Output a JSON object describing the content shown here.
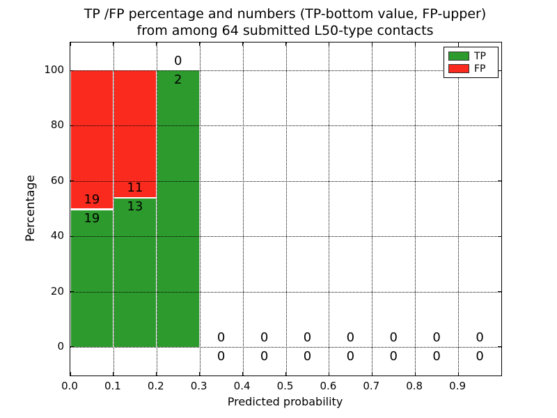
{
  "figure": {
    "title_line1": "TP /FP percentage and numbers (TP-bottom value, FP-upper)",
    "title_line2": "from among 64 submitted L50-type contacts",
    "xlabel": "Predicted probability",
    "ylabel": "Percentage"
  },
  "legend": {
    "items": [
      {
        "label": "TP",
        "color": "#2d9a2d"
      },
      {
        "label": "FP",
        "color": "#fa2a1e"
      }
    ]
  },
  "chart_data": {
    "type": "bar",
    "stacked": true,
    "title": "TP /FP percentage and numbers (TP-bottom value, FP-upper) from among 64 submitted L50-type contacts",
    "xlabel": "Predicted probability",
    "ylabel": "Percentage",
    "total_contacts": 64,
    "bin_width": 0.1,
    "bin_starts": [
      0.0,
      0.1,
      0.2,
      0.3,
      0.4,
      0.5,
      0.6,
      0.7,
      0.8,
      0.9
    ],
    "series": [
      {
        "name": "TP",
        "color": "#2d9a2d",
        "counts": [
          19,
          13,
          2,
          0,
          0,
          0,
          0,
          0,
          0,
          0
        ],
        "percent": [
          50.0,
          54.17,
          100.0,
          0,
          0,
          0,
          0,
          0,
          0,
          0
        ],
        "label_position": "below boundary (bottom value)"
      },
      {
        "name": "FP",
        "color": "#fa2a1e",
        "counts": [
          19,
          11,
          0,
          0,
          0,
          0,
          0,
          0,
          0,
          0
        ],
        "percent": [
          50.0,
          45.83,
          0,
          0,
          0,
          0,
          0,
          0,
          0,
          0
        ],
        "label_position": "above boundary (upper value)"
      }
    ],
    "xticks": [
      "0.0",
      "0.1",
      "0.2",
      "0.3",
      "0.4",
      "0.5",
      "0.6",
      "0.7",
      "0.8",
      "0.9"
    ],
    "yticks": [
      "0",
      "20",
      "40",
      "60",
      "80",
      "100"
    ],
    "xlim": [
      0.0,
      1.0
    ],
    "ylim": [
      -10.33,
      110.08
    ],
    "grid": true,
    "grid_style": "dotted",
    "legend_position": "upper right"
  }
}
